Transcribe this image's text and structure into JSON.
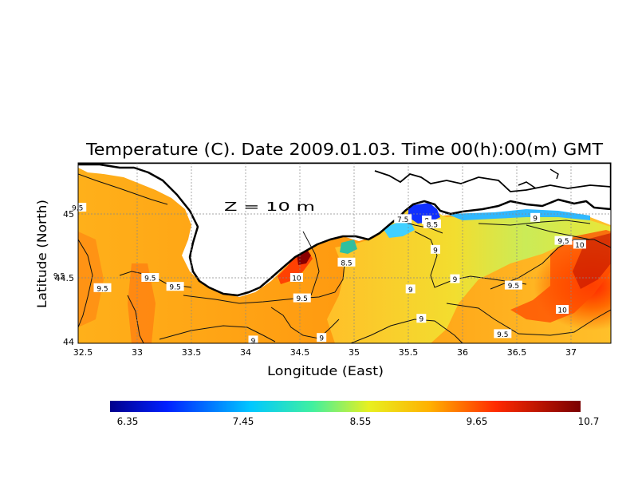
{
  "title": "Temperature (C). Date 2009.01.03. Time 00(h):00(m) GMT",
  "depth_label": "Z = 10 m",
  "xaxis": {
    "label": "Longitude (East)",
    "ticks": [
      "32.5",
      "33",
      "33.5",
      "34",
      "34.5",
      "35",
      "35.5",
      "36",
      "36.5",
      "37"
    ]
  },
  "yaxis": {
    "label": "Latitude (North)",
    "ticks": [
      "44",
      "44.5",
      "45"
    ]
  },
  "colorbar": {
    "ticks": [
      "6.35",
      "7.45",
      "8.55",
      "9.65",
      "10.7"
    ]
  },
  "contour_labels": [
    {
      "text": "9.5",
      "lon": 32.45,
      "lat": 45.05
    },
    {
      "text": "9.5",
      "lon": 32.28,
      "lat": 44.52
    },
    {
      "text": "9.5",
      "lon": 32.68,
      "lat": 44.42
    },
    {
      "text": "9.5",
      "lon": 33.12,
      "lat": 44.5
    },
    {
      "text": "9.5",
      "lon": 33.35,
      "lat": 44.43
    },
    {
      "text": "10",
      "lon": 34.47,
      "lat": 44.5
    },
    {
      "text": "9.5",
      "lon": 34.52,
      "lat": 44.34
    },
    {
      "text": "9",
      "lon": 34.07,
      "lat": 44.01
    },
    {
      "text": "9",
      "lon": 34.7,
      "lat": 44.03
    },
    {
      "text": "8.5",
      "lon": 34.93,
      "lat": 44.62
    },
    {
      "text": "7.5",
      "lon": 35.45,
      "lat": 44.96
    },
    {
      "text": "8",
      "lon": 35.67,
      "lat": 44.95
    },
    {
      "text": "8.5",
      "lon": 35.72,
      "lat": 44.92
    },
    {
      "text": "9",
      "lon": 35.75,
      "lat": 44.72
    },
    {
      "text": "9",
      "lon": 35.93,
      "lat": 44.49
    },
    {
      "text": "9",
      "lon": 35.52,
      "lat": 44.41
    },
    {
      "text": "9",
      "lon": 35.62,
      "lat": 44.18
    },
    {
      "text": "9.5",
      "lon": 36.47,
      "lat": 44.44
    },
    {
      "text": "9",
      "lon": 36.67,
      "lat": 44.97
    },
    {
      "text": "9.5",
      "lon": 36.93,
      "lat": 44.79
    },
    {
      "text": "10",
      "lon": 37.08,
      "lat": 44.76
    },
    {
      "text": "10",
      "lon": 36.92,
      "lat": 44.25
    },
    {
      "text": "9.5",
      "lon": 36.37,
      "lat": 44.06
    }
  ]
}
